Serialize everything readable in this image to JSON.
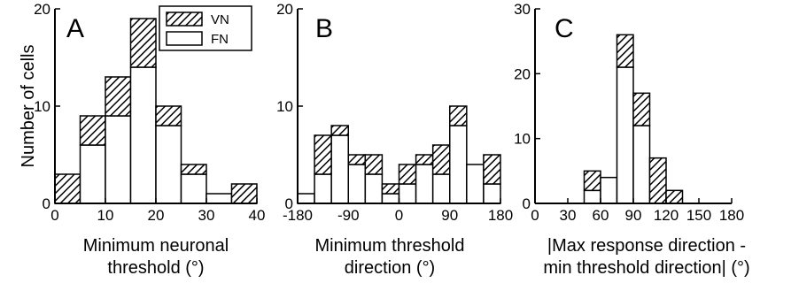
{
  "figure": {
    "ylabel": "Number of cells",
    "legend": [
      {
        "label": "VN",
        "pattern": "hatched"
      },
      {
        "label": "FN",
        "pattern": "white"
      }
    ]
  },
  "chart_data": [
    {
      "type": "bar",
      "stacked": true,
      "panel": "A",
      "xlabel": [
        "Minimum neuronal",
        "threshold (°)"
      ],
      "ylabel": "Number of cells",
      "xlim": [
        0,
        40
      ],
      "ylim": [
        0,
        20
      ],
      "xticks": [
        0,
        10,
        20,
        30,
        40
      ],
      "xtick_labels": [
        "0",
        "10",
        "20",
        "30",
        "40"
      ],
      "yticks": [
        0,
        10,
        20
      ],
      "ytick_labels": [
        "0",
        "10",
        "20"
      ],
      "bin_edges": [
        [
          0,
          5
        ],
        [
          5,
          10
        ],
        [
          10,
          15
        ],
        [
          15,
          20
        ],
        [
          20,
          25
        ],
        [
          25,
          30
        ],
        [
          30,
          35
        ],
        [
          35,
          40
        ]
      ],
      "series": [
        {
          "name": "FN",
          "values": [
            0,
            6,
            9,
            14,
            8,
            3,
            1,
            0
          ]
        },
        {
          "name": "VN",
          "values": [
            3,
            3,
            4,
            5,
            2,
            1,
            0,
            2
          ]
        }
      ],
      "legend_position": "top-right"
    },
    {
      "type": "bar",
      "stacked": true,
      "panel": "B",
      "xlabel": [
        "Minimum threshold",
        "direction (°)"
      ],
      "xlim": [
        -180,
        180
      ],
      "ylim": [
        0,
        20
      ],
      "xticks": [
        -180,
        -90,
        0,
        90,
        180
      ],
      "xtick_labels": [
        "-180",
        "-90",
        "0",
        "90",
        "180"
      ],
      "yticks": [
        0,
        10,
        20
      ],
      "ytick_labels": [
        "0",
        "10",
        "20"
      ],
      "bin_edges": [
        [
          -180,
          -150
        ],
        [
          -150,
          -120
        ],
        [
          -120,
          -90
        ],
        [
          -90,
          -60
        ],
        [
          -60,
          -30
        ],
        [
          -30,
          0
        ],
        [
          0,
          30
        ],
        [
          30,
          60
        ],
        [
          60,
          90
        ],
        [
          90,
          120
        ],
        [
          120,
          150
        ],
        [
          150,
          180
        ]
      ],
      "series": [
        {
          "name": "FN",
          "values": [
            1,
            3,
            7,
            4,
            3,
            1,
            2,
            4,
            3,
            8,
            4,
            2
          ]
        },
        {
          "name": "VN",
          "values": [
            0,
            4,
            1,
            1,
            2,
            1,
            2,
            1,
            3,
            2,
            0,
            3
          ]
        }
      ]
    },
    {
      "type": "bar",
      "stacked": true,
      "panel": "C",
      "xlabel": [
        "|Max  response direction -",
        "min threshold direction| (°)"
      ],
      "xlim": [
        0,
        180
      ],
      "ylim": [
        0,
        30
      ],
      "xticks": [
        0,
        30,
        60,
        90,
        120,
        150,
        180
      ],
      "xtick_labels": [
        "0",
        "30",
        "60",
        "90",
        "120",
        "150",
        "180"
      ],
      "yticks": [
        0,
        10,
        20,
        30
      ],
      "ytick_labels": [
        "0",
        "10",
        "20",
        "30"
      ],
      "bin_edges": [
        [
          45,
          60
        ],
        [
          60,
          75
        ],
        [
          75,
          90
        ],
        [
          90,
          105
        ],
        [
          105,
          120
        ],
        [
          120,
          135
        ]
      ],
      "series": [
        {
          "name": "FN",
          "values": [
            2,
            4,
            21,
            12,
            0,
            0
          ]
        },
        {
          "name": "VN",
          "values": [
            3,
            0,
            5,
            5,
            7,
            2
          ]
        }
      ]
    }
  ]
}
